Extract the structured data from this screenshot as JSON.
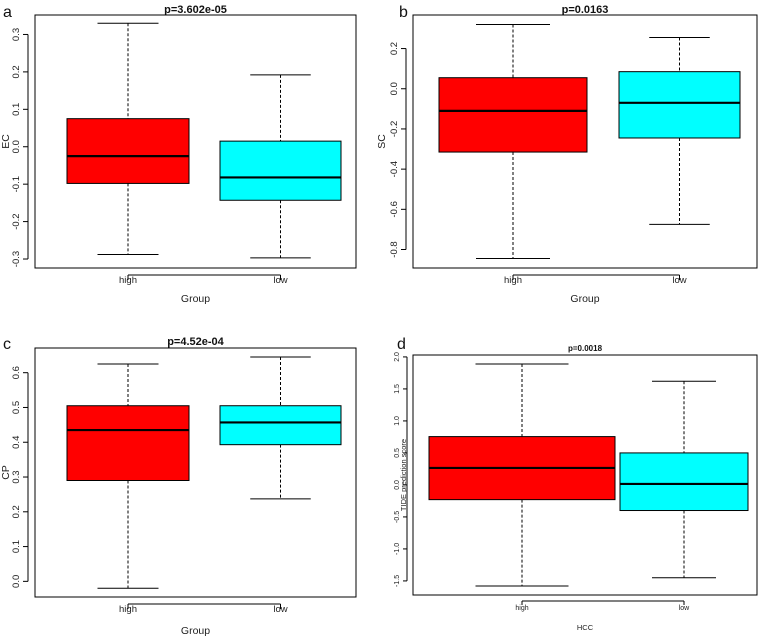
{
  "chart_data": [
    {
      "panel": "a",
      "type": "box",
      "title": "p=3.602e-05",
      "xlabel": "Group",
      "ylabel": "EC",
      "categories": [
        "high",
        "low"
      ],
      "boxes": [
        {
          "name": "high",
          "color": "#ff0000",
          "whisker_low": -0.288,
          "q1": -0.098,
          "median": -0.025,
          "q3": 0.075,
          "whisker_high": 0.33
        },
        {
          "name": "low",
          "color": "#00ffff",
          "whisker_low": -0.297,
          "q1": -0.143,
          "median": -0.082,
          "q3": 0.015,
          "whisker_high": 0.192
        }
      ],
      "yticks": [
        -0.3,
        -0.2,
        -0.1,
        0.0,
        0.1,
        0.2,
        0.3
      ],
      "ytick_labels": [
        "-0.3",
        "-0.2",
        "-0.1",
        "0.0",
        "0.1",
        "0.2",
        "0.3"
      ],
      "ylim": [
        -0.324,
        0.352
      ]
    },
    {
      "panel": "b",
      "type": "box",
      "title": "p=0.0163",
      "xlabel": "Group",
      "ylabel": "SC",
      "categories": [
        "high",
        "low"
      ],
      "boxes": [
        {
          "name": "high",
          "color": "#ff0000",
          "whisker_low": -0.845,
          "q1": -0.315,
          "median": -0.11,
          "q3": 0.055,
          "whisker_high": 0.32
        },
        {
          "name": "low",
          "color": "#00ffff",
          "whisker_low": -0.675,
          "q1": -0.245,
          "median": -0.07,
          "q3": 0.085,
          "whisker_high": 0.255
        }
      ],
      "yticks": [
        -0.8,
        -0.6,
        -0.4,
        -0.2,
        0.0,
        0.2
      ],
      "ytick_labels": [
        "-0.8",
        "-0.6",
        "-0.4",
        "-0.2",
        "0.0",
        "0.2"
      ],
      "ylim": [
        -0.892,
        0.367
      ]
    },
    {
      "panel": "c",
      "type": "box",
      "title": "p=4.52e-04",
      "xlabel": "Group",
      "ylabel": "CP",
      "categories": [
        "high",
        "low"
      ],
      "boxes": [
        {
          "name": "high",
          "color": "#ff0000",
          "whisker_low": -0.02,
          "q1": 0.29,
          "median": 0.435,
          "q3": 0.505,
          "whisker_high": 0.625
        },
        {
          "name": "low",
          "color": "#00ffff",
          "whisker_low": 0.237,
          "q1": 0.393,
          "median": 0.457,
          "q3": 0.505,
          "whisker_high": 0.645
        }
      ],
      "yticks": [
        0.0,
        0.1,
        0.2,
        0.3,
        0.4,
        0.5,
        0.6
      ],
      "ytick_labels": [
        "0.0",
        "0.1",
        "0.2",
        "0.3",
        "0.4",
        "0.5",
        "0.6"
      ],
      "ylim": [
        -0.045,
        0.671
      ]
    },
    {
      "panel": "d",
      "type": "box",
      "title": "p=0.0018",
      "xlabel": "HCC",
      "ylabel": "TIDE prediction score",
      "categories": [
        "high",
        "low"
      ],
      "boxes": [
        {
          "name": "high",
          "color": "#ff0000",
          "whisker_low": -1.58,
          "q1": -0.23,
          "median": 0.265,
          "q3": 0.755,
          "whisker_high": 1.89
        },
        {
          "name": "low",
          "color": "#00ffff",
          "whisker_low": -1.45,
          "q1": -0.4,
          "median": 0.015,
          "q3": 0.5,
          "whisker_high": 1.62
        }
      ],
      "yticks": [
        -1.5,
        -1.0,
        -0.5,
        0.0,
        0.5,
        1.0,
        1.5,
        2.0
      ],
      "ytick_labels": [
        "-1.5",
        "-1.0",
        "-0.5",
        "0.0",
        "0.5",
        "1.0",
        "1.5",
        "2.0"
      ],
      "ylim": [
        -1.72,
        2.03
      ]
    }
  ]
}
